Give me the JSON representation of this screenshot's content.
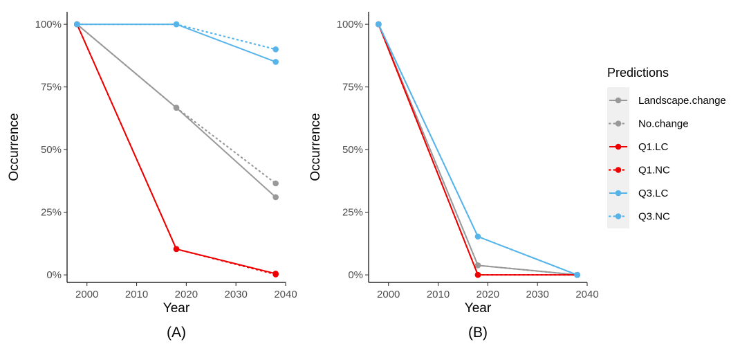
{
  "chart_data": [
    {
      "type": "line",
      "panel_label": "(A)",
      "xlabel": "Year",
      "ylabel": "Occurrence",
      "xlim": [
        1996,
        2040
      ],
      "ylim": [
        -0.03,
        1.05
      ],
      "x_ticks": [
        2000,
        2010,
        2020,
        2030,
        2040
      ],
      "y_ticks": [
        0,
        0.25,
        0.5,
        0.75,
        1.0
      ],
      "y_tick_labels": [
        "0%",
        "25%",
        "50%",
        "75%",
        "100%"
      ],
      "grid": false,
      "series": [
        {
          "name": "Landscape.change",
          "color": "#999999",
          "style": "solid",
          "x": [
            1998,
            2018,
            2038
          ],
          "y": [
            1.0,
            0.667,
            0.31
          ]
        },
        {
          "name": "No.change",
          "color": "#999999",
          "style": "dotted",
          "x": [
            1998,
            2018,
            2038
          ],
          "y": [
            1.0,
            0.667,
            0.365
          ]
        },
        {
          "name": "Q1.LC",
          "color": "#ee0000",
          "style": "solid",
          "x": [
            1998,
            2018,
            2038
          ],
          "y": [
            1.0,
            0.103,
            0.005
          ]
        },
        {
          "name": "Q1.NC",
          "color": "#ee0000",
          "style": "dotted",
          "x": [
            1998,
            2018,
            2038
          ],
          "y": [
            1.0,
            0.103,
            0.002
          ]
        },
        {
          "name": "Q3.LC",
          "color": "#56b4e9",
          "style": "solid",
          "x": [
            1998,
            2018,
            2038
          ],
          "y": [
            1.0,
            1.0,
            0.85
          ]
        },
        {
          "name": "Q3.NC",
          "color": "#56b4e9",
          "style": "dotted",
          "x": [
            1998,
            2018,
            2038
          ],
          "y": [
            1.0,
            1.0,
            0.9
          ]
        }
      ]
    },
    {
      "type": "line",
      "panel_label": "(B)",
      "xlabel": "Year",
      "ylabel": "Occurrence",
      "xlim": [
        1996,
        2040
      ],
      "ylim": [
        -0.03,
        1.05
      ],
      "x_ticks": [
        2000,
        2010,
        2020,
        2030,
        2040
      ],
      "y_ticks": [
        0,
        0.25,
        0.5,
        0.75,
        1.0
      ],
      "y_tick_labels": [
        "0%",
        "25%",
        "50%",
        "75%",
        "100%"
      ],
      "grid": false,
      "series": [
        {
          "name": "Landscape.change",
          "color": "#999999",
          "style": "solid",
          "x": [
            1998,
            2018,
            2038
          ],
          "y": [
            1.0,
            0.038,
            0.0
          ]
        },
        {
          "name": "No.change",
          "color": "#999999",
          "style": "dotted",
          "x": [
            1998,
            2018,
            2038
          ],
          "y": [
            1.0,
            0.038,
            0.0
          ]
        },
        {
          "name": "Q1.LC",
          "color": "#ee0000",
          "style": "solid",
          "x": [
            1998,
            2018,
            2038
          ],
          "y": [
            1.0,
            0.0,
            0.0
          ]
        },
        {
          "name": "Q1.NC",
          "color": "#ee0000",
          "style": "dotted",
          "x": [
            1998,
            2018,
            2038
          ],
          "y": [
            1.0,
            0.0,
            0.0
          ]
        },
        {
          "name": "Q3.LC",
          "color": "#56b4e9",
          "style": "solid",
          "x": [
            1998,
            2018,
            2038
          ],
          "y": [
            1.0,
            0.153,
            0.0
          ]
        },
        {
          "name": "Q3.NC",
          "color": "#56b4e9",
          "style": "dotted",
          "x": [
            1998,
            2018,
            2038
          ],
          "y": [
            1.0,
            0.153,
            0.0
          ]
        }
      ]
    }
  ],
  "legend": {
    "title": "Predictions",
    "placement": "right",
    "items": [
      {
        "label": "Landscape.change",
        "color": "#999999",
        "style": "solid"
      },
      {
        "label": "No.change",
        "color": "#999999",
        "style": "dotted"
      },
      {
        "label": "Q1.LC",
        "color": "#ee0000",
        "style": "solid"
      },
      {
        "label": "Q1.NC",
        "color": "#ee0000",
        "style": "dotted"
      },
      {
        "label": "Q3.LC",
        "color": "#56b4e9",
        "style": "solid"
      },
      {
        "label": "Q3.NC",
        "color": "#56b4e9",
        "style": "dotted"
      }
    ]
  }
}
